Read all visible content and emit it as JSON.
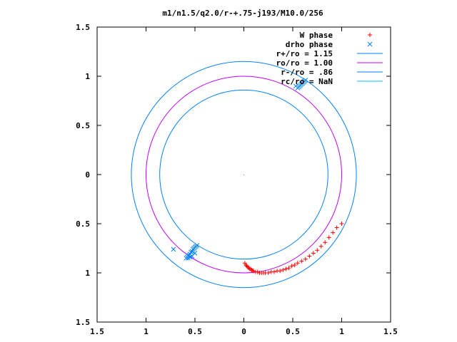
{
  "chart_data": {
    "type": "scatter",
    "title": "m1/n1.5/q2.0/r-+.75-j193/M10.0/256",
    "xlim": [
      -1.5,
      1.5
    ],
    "ylim": [
      -1.5,
      1.5
    ],
    "x_ticks": [
      -1.5,
      -1,
      -0.5,
      0,
      0.5,
      1,
      1.5
    ],
    "y_ticks": [
      -1.5,
      -1,
      -0.5,
      0,
      0.5,
      1,
      1.5
    ],
    "x_tick_labels": [
      "1.5",
      "1",
      "0.5",
      "0",
      "0.5",
      "1",
      "1.5"
    ],
    "y_tick_labels": [
      "1.5",
      "1",
      "0.5",
      "0",
      "0.5",
      "1",
      "1.5"
    ],
    "grid": false,
    "legend_position": "top-right",
    "series": [
      {
        "name": "W phase",
        "kind": "points",
        "marker": "plus",
        "color": "#ff0000",
        "x": [
          0.01,
          0.02,
          0.03,
          0.04,
          0.05,
          0.06,
          0.07,
          0.08,
          0.09,
          0.1,
          0.12,
          0.14,
          0.16,
          0.18,
          0.2,
          0.22,
          0.25,
          0.28,
          0.31,
          0.34,
          0.37,
          0.4,
          0.43,
          0.46,
          0.49,
          0.52,
          0.55,
          0.59,
          0.63,
          0.67,
          0.71,
          0.75,
          0.79,
          0.83,
          0.87,
          0.91,
          0.95,
          1.0
        ],
        "y": [
          -0.9,
          -0.92,
          -0.93,
          -0.94,
          -0.95,
          -0.96,
          -0.96,
          -0.97,
          -0.98,
          -0.98,
          -0.99,
          -0.99,
          -1.0,
          -1.0,
          -1.0,
          -1.0,
          -1.0,
          -0.99,
          -0.99,
          -0.98,
          -0.98,
          -0.97,
          -0.96,
          -0.95,
          -0.93,
          -0.92,
          -0.9,
          -0.88,
          -0.86,
          -0.83,
          -0.8,
          -0.77,
          -0.73,
          -0.69,
          -0.64,
          -0.59,
          -0.54,
          -0.5
        ]
      },
      {
        "name": "drho phase",
        "kind": "points",
        "marker": "cross",
        "color": "#0080ff",
        "x": [
          -0.72,
          -0.58,
          -0.57,
          -0.56,
          -0.55,
          -0.54,
          -0.53,
          -0.52,
          -0.51,
          -0.5,
          -0.49,
          -0.48,
          -0.59,
          -0.57,
          -0.55,
          -0.53,
          -0.5,
          0.53,
          0.55,
          0.56,
          0.57,
          0.58,
          0.59,
          0.6,
          0.61,
          0.62,
          0.63
        ],
        "y": [
          -0.76,
          -0.84,
          -0.83,
          -0.82,
          -0.81,
          -0.79,
          -0.78,
          -0.76,
          -0.75,
          -0.74,
          -0.73,
          -0.72,
          -0.85,
          -0.85,
          -0.84,
          -0.83,
          -0.8,
          0.9,
          0.88,
          0.89,
          0.9,
          0.91,
          0.92,
          0.93,
          0.94,
          0.95,
          0.96
        ]
      },
      {
        "name": "r+/ro = 1.15",
        "kind": "circle",
        "r": 1.15,
        "color": "#0080ff"
      },
      {
        "name": "ro/ro = 1.00",
        "kind": "circle",
        "r": 1.0,
        "color": "#c000ff"
      },
      {
        "name": "r-/ro = .86",
        "kind": "circle",
        "r": 0.86,
        "color": "#0080ff"
      },
      {
        "name": "rc/ro = NaN",
        "kind": "circle",
        "r": null,
        "color": "#00c0ff"
      }
    ]
  }
}
